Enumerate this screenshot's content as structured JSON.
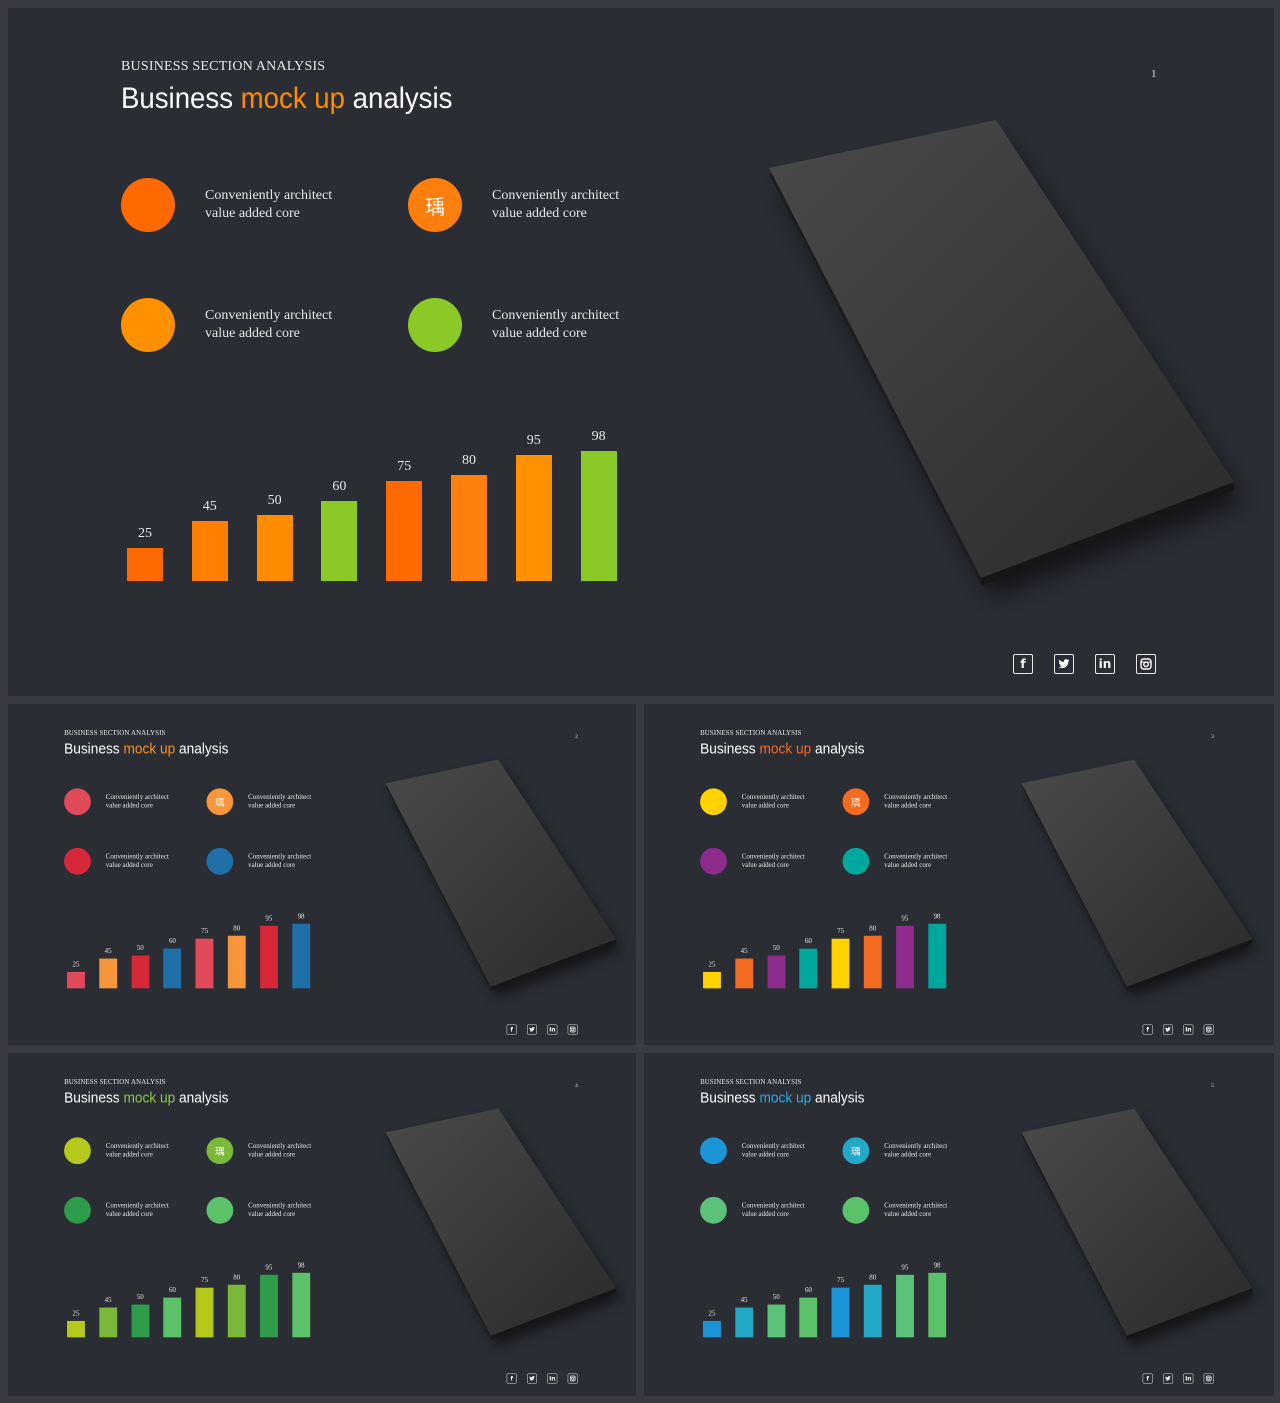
{
  "colors": {
    "page_bg": "#3a3b40",
    "slide_bg": "#2b2d35",
    "phone_face": "#3a3a3a"
  },
  "slides": [
    {
      "subtitle": "BUSINESS SECTION ANALYSIS",
      "title_pre": "Business ",
      "title_accent": "mock up",
      "title_post": " analysis",
      "accent": "#ff8c00",
      "page": "1",
      "features": [
        {
          "text_1": "Conveniently architect",
          "text_2": "value added core",
          "color": "#ff6a00",
          "icon": ""
        },
        {
          "text_1": "Conveniently architect",
          "text_2": "value added core",
          "color": "#ff7f0e",
          "icon": "瑀"
        },
        {
          "text_1": "Conveniently architect",
          "text_2": "value added core",
          "color": "#ff9000",
          "icon": ""
        },
        {
          "text_1": "Conveniently architect",
          "text_2": "value added core",
          "color": "#8ac926",
          "icon": ""
        }
      ],
      "chart_data": {
        "type": "bar",
        "values": [
          25,
          45,
          50,
          60,
          75,
          80,
          95,
          98
        ],
        "colors": [
          "#ff6a00",
          "#ff8000",
          "#ff8c00",
          "#8ac926",
          "#ff6a00",
          "#ff7f0e",
          "#ff9000",
          "#8ac926"
        ]
      }
    },
    {
      "subtitle": "BUSINESS SECTION ANALYSIS",
      "title_pre": "Business ",
      "title_accent": "mock up",
      "title_post": " analysis",
      "accent": "#f7931e",
      "page": "2",
      "features": [
        {
          "text_1": "Conveniently architect",
          "text_2": "value added core",
          "color": "#e04a5a",
          "icon": ""
        },
        {
          "text_1": "Conveniently architect",
          "text_2": "value added core",
          "color": "#f7963a",
          "icon": "瑀"
        },
        {
          "text_1": "Conveniently architect",
          "text_2": "value added core",
          "color": "#d62839",
          "icon": ""
        },
        {
          "text_1": "Conveniently architect",
          "text_2": "value added core",
          "color": "#1f6fa8",
          "icon": ""
        }
      ],
      "chart_data": {
        "type": "bar",
        "values": [
          25,
          45,
          50,
          60,
          75,
          80,
          95,
          98
        ],
        "colors": [
          "#e04a5a",
          "#f7963a",
          "#d62839",
          "#1f6fa8",
          "#e04a5a",
          "#f7963a",
          "#d62839",
          "#1f6fa8"
        ]
      }
    },
    {
      "subtitle": "BUSINESS SECTION ANALYSIS",
      "title_pre": "Business ",
      "title_accent": "mock up",
      "title_post": " analysis",
      "accent": "#f26b21",
      "page": "3",
      "features": [
        {
          "text_1": "Conveniently architect",
          "text_2": "value added core",
          "color": "#ffd200",
          "icon": ""
        },
        {
          "text_1": "Conveniently architect",
          "text_2": "value added core",
          "color": "#f26b21",
          "icon": "瑀"
        },
        {
          "text_1": "Conveniently architect",
          "text_2": "value added core",
          "color": "#8e2c8e",
          "icon": ""
        },
        {
          "text_1": "Conveniently architect",
          "text_2": "value added core",
          "color": "#00a79d",
          "icon": ""
        }
      ],
      "chart_data": {
        "type": "bar",
        "values": [
          25,
          45,
          50,
          60,
          75,
          80,
          95,
          98
        ],
        "colors": [
          "#ffd200",
          "#f26b21",
          "#8e2c8e",
          "#00a79d",
          "#ffd200",
          "#f26b21",
          "#8e2c8e",
          "#00a79d"
        ]
      }
    },
    {
      "subtitle": "BUSINESS SECTION ANALYSIS",
      "title_pre": "Business ",
      "title_accent": "mock up",
      "title_post": " analysis",
      "accent": "#8dc63f",
      "page": "4",
      "features": [
        {
          "text_1": "Conveniently architect",
          "text_2": "value added core",
          "color": "#b5c91a",
          "icon": ""
        },
        {
          "text_1": "Conveniently architect",
          "text_2": "value added core",
          "color": "#7ab83a",
          "icon": "瑀"
        },
        {
          "text_1": "Conveniently architect",
          "text_2": "value added core",
          "color": "#2e9c4a",
          "icon": ""
        },
        {
          "text_1": "Conveniently architect",
          "text_2": "value added core",
          "color": "#5cc26a",
          "icon": ""
        }
      ],
      "chart_data": {
        "type": "bar",
        "values": [
          25,
          45,
          50,
          60,
          75,
          80,
          95,
          98
        ],
        "colors": [
          "#b5c91a",
          "#7ab83a",
          "#2e9c4a",
          "#5cc26a",
          "#b5c91a",
          "#7ab83a",
          "#2e9c4a",
          "#5cc26a"
        ]
      }
    },
    {
      "subtitle": "BUSINESS SECTION ANALYSIS",
      "title_pre": "Business ",
      "title_accent": "mock up",
      "title_post": " analysis",
      "accent": "#29abe2",
      "page": "5",
      "features": [
        {
          "text_1": "Conveniently architect",
          "text_2": "value added core",
          "color": "#1b95d8",
          "icon": ""
        },
        {
          "text_1": "Conveniently architect",
          "text_2": "value added core",
          "color": "#24a8c8",
          "icon": "瑀"
        },
        {
          "text_1": "Conveniently architect",
          "text_2": "value added core",
          "color": "#5cc27a",
          "icon": ""
        },
        {
          "text_1": "Conveniently architect",
          "text_2": "value added core",
          "color": "#5cc26a",
          "icon": ""
        }
      ],
      "chart_data": {
        "type": "bar",
        "values": [
          25,
          45,
          50,
          60,
          75,
          80,
          95,
          98
        ],
        "colors": [
          "#1b95d8",
          "#24a8c8",
          "#5cc27a",
          "#5cc26a",
          "#1b95d8",
          "#24a8c8",
          "#5cc27a",
          "#5cc26a"
        ]
      }
    }
  ],
  "social": {
    "facebook": "f",
    "twitter": "twitter-icon",
    "linkedin": "in",
    "instagram": "instagram-icon"
  }
}
